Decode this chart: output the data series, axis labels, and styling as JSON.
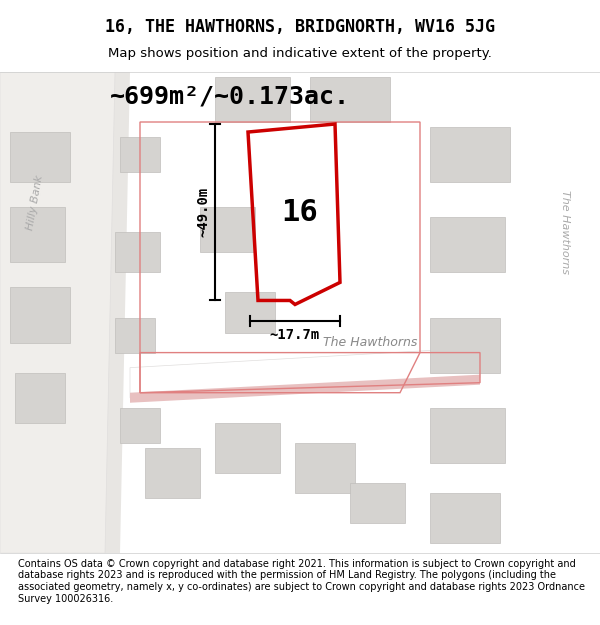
{
  "title": "16, THE HAWTHORNS, BRIDGNORTH, WV16 5JG",
  "subtitle": "Map shows position and indicative extent of the property.",
  "area_text": "~699m²/~0.173ac.",
  "dim_vertical": "~49.0m",
  "dim_horizontal": "~17.7m",
  "property_number": "16",
  "street_label": "The Hawthorns",
  "street_label_right": "The Hawthorns",
  "street_label_left": "Hilly Bank",
  "footer": "Contains OS data © Crown copyright and database right 2021. This information is subject to Crown copyright and database rights 2023 and is reproduced with the permission of HM Land Registry. The polygons (including the associated geometry, namely x, y co-ordinates) are subject to Crown copyright and database rights 2023 Ordnance Survey 100026316.",
  "bg_color": "#f0eeeb",
  "map_bg": "#f7f5f2",
  "road_color": "#ffffff",
  "building_color": "#d9d7d4",
  "building_outline": "#c8c6c3",
  "red_outline": "#cc0000",
  "black": "#000000",
  "gray_road_outline": "#e0dedd",
  "pink_road": "#e8b0b0",
  "figsize": [
    6.0,
    6.25
  ],
  "dpi": 100
}
